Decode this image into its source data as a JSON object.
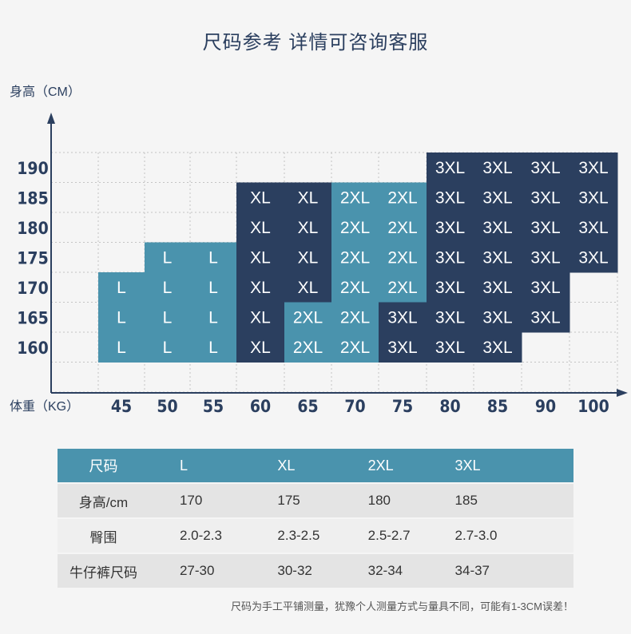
{
  "title": "尺码参考 详情可咨询客服",
  "chart_data": {
    "type": "heatmap",
    "ylabel": "身高（CM）",
    "xlabel": "体重（KG）",
    "x_ticks": [
      "45",
      "50",
      "55",
      "60",
      "65",
      "70",
      "75",
      "80",
      "85",
      "90",
      "100"
    ],
    "y_ticks": [
      "190",
      "185",
      "180",
      "175",
      "170",
      "165",
      "160"
    ],
    "colors": {
      "L": "#4a93ad",
      "XL": "#2b3f5f",
      "2XL": "#4a93ad",
      "3XL": "#2b3f5f",
      "grid": "#c4c4c4",
      "axis": "#2b3f5f"
    },
    "rows": [
      {
        "height": "190",
        "cells": [
          "",
          "",
          "",
          "",
          "",
          "",
          "",
          "3XL",
          "3XL",
          "3XL",
          "3XL"
        ]
      },
      {
        "height": "185",
        "cells": [
          "",
          "",
          "",
          "XL",
          "XL",
          "2XL",
          "2XL",
          "3XL",
          "3XL",
          "3XL",
          "3XL"
        ]
      },
      {
        "height": "180",
        "cells": [
          "",
          "",
          "",
          "XL",
          "XL",
          "2XL",
          "2XL",
          "3XL",
          "3XL",
          "3XL",
          "3XL"
        ]
      },
      {
        "height": "175",
        "cells": [
          "",
          "L",
          "L",
          "XL",
          "XL",
          "2XL",
          "2XL",
          "3XL",
          "3XL",
          "3XL",
          "3XL"
        ]
      },
      {
        "height": "170",
        "cells": [
          "L",
          "L",
          "L",
          "XL",
          "XL",
          "2XL",
          "2XL",
          "3XL",
          "3XL",
          "3XL",
          ""
        ]
      },
      {
        "height": "165",
        "cells": [
          "L",
          "L",
          "L",
          "XL",
          "2XL",
          "2XL",
          "3XL",
          "3XL",
          "3XL",
          "3XL",
          ""
        ]
      },
      {
        "height": "160",
        "cells": [
          "L",
          "L",
          "L",
          "XL",
          "2XL",
          "2XL",
          "3XL",
          "3XL",
          "3XL",
          "",
          ""
        ]
      }
    ]
  },
  "size_table": {
    "headers": [
      "尺码",
      "L",
      "XL",
      "2XL",
      "3XL"
    ],
    "rows": [
      [
        "身高/cm",
        "170",
        "175",
        "180",
        "185"
      ],
      [
        "臀围",
        "2.0-2.3",
        "2.3-2.5",
        "2.5-2.7",
        "2.7-3.0"
      ],
      [
        "牛仔裤尺码",
        "27-30",
        "30-32",
        "32-34",
        "34-37"
      ]
    ]
  },
  "footnote": "尺码为手工平铺测量，犹豫个人测量方式与量具不同，可能有1-3CM误差！"
}
